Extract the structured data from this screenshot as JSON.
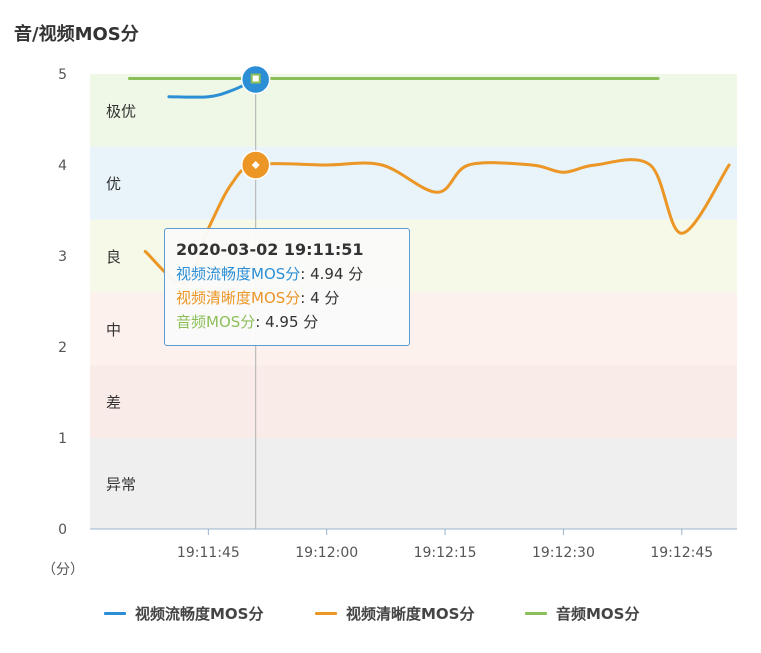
{
  "chart_title": "音/视频MOS分",
  "chart_data": {
    "type": "line",
    "title": "音/视频MOS分",
    "xlabel": "",
    "ylabel": "（分）",
    "ylim": [
      0,
      5
    ],
    "yticks": [
      "0",
      "1",
      "2",
      "3",
      "4",
      "5"
    ],
    "xticks": [
      "19:11:45",
      "19:12:00",
      "19:12:15",
      "19:12:30",
      "19:12:45"
    ],
    "grid": "vertical crosshair at hovered point",
    "legend_placement": "bottom-center",
    "bands": [
      {
        "label": "极优",
        "from": 4.2,
        "to": 5.0,
        "color": "#eff7e6"
      },
      {
        "label": "优",
        "from": 3.4,
        "to": 4.2,
        "color": "#e8f3fa"
      },
      {
        "label": "良",
        "from": 2.6,
        "to": 3.4,
        "color": "#f6f8e8"
      },
      {
        "label": "中",
        "from": 1.8,
        "to": 2.6,
        "color": "#fcf1ec"
      },
      {
        "label": "差",
        "from": 1.0,
        "to": 1.8,
        "color": "#f9ebe8"
      },
      {
        "label": "异常",
        "from": 0.0,
        "to": 1.0,
        "color": "#efefef"
      }
    ],
    "series": [
      {
        "name": "视频流畅度MOS分",
        "color": "#2c8fd6",
        "points": [
          [
            "19:11:40",
            4.75
          ],
          [
            "19:11:45",
            4.75
          ],
          [
            "19:11:48",
            4.82
          ],
          [
            "19:11:51",
            4.94
          ]
        ]
      },
      {
        "name": "视频清晰度MOS分",
        "color": "#eb9625",
        "points": [
          [
            "19:11:37",
            3.05
          ],
          [
            "19:11:42",
            2.7
          ],
          [
            "19:11:45",
            3.3
          ],
          [
            "19:11:48",
            3.8
          ],
          [
            "19:11:51",
            4.0
          ],
          [
            "19:12:00",
            4.0
          ],
          [
            "19:12:07",
            4.0
          ],
          [
            "19:12:14",
            3.7
          ],
          [
            "19:12:18",
            4.0
          ],
          [
            "19:12:26",
            4.0
          ],
          [
            "19:12:30",
            3.92
          ],
          [
            "19:12:34",
            4.0
          ],
          [
            "19:12:41",
            4.0
          ],
          [
            "19:12:45",
            3.25
          ],
          [
            "19:12:51",
            4.0
          ]
        ]
      },
      {
        "name": "音频MOS分",
        "color": "#8cbf5a",
        "points": [
          [
            "19:11:35",
            4.95
          ],
          [
            "19:11:51",
            4.95
          ],
          [
            "19:12:42",
            4.95
          ]
        ]
      }
    ],
    "tooltip": {
      "time": "2020-03-02 19:11:51",
      "rows": [
        {
          "name": "视频流畅度MOS分",
          "value": ": 4.94 分",
          "color": "#2c8fd6"
        },
        {
          "name": "视频清晰度MOS分",
          "value": ": 4 分",
          "color": "#eb9625"
        },
        {
          "name": "音频MOS分",
          "value": ": 4.95 分",
          "color": "#8cbf5a"
        }
      ],
      "hover_time": "19:11:51"
    },
    "x_range": [
      "19:11:30",
      "19:12:52"
    ]
  },
  "legend": [
    {
      "label": "视频流畅度MOS分",
      "color": "#2c8fd6"
    },
    {
      "label": "视频清晰度MOS分",
      "color": "#eb9625"
    },
    {
      "label": "音频MOS分",
      "color": "#8cbf5a"
    }
  ]
}
